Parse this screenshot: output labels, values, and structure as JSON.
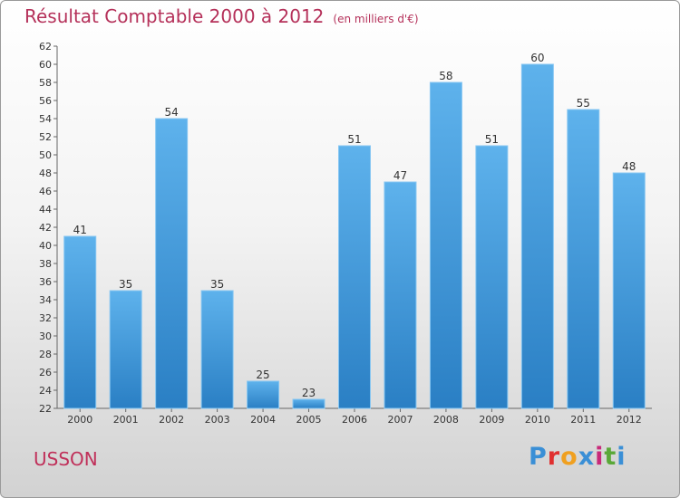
{
  "title": "Résultat Comptable 2000 à 2012",
  "subtitle": "(en milliers d'€)",
  "commune": "USSON",
  "logo": {
    "text": "Proxiti",
    "colors": [
      "#3a8fd6",
      "#e03030",
      "#f0a020",
      "#3a8fd6",
      "#c82a7a",
      "#5aa838",
      "#3a8fd6"
    ]
  },
  "colors": {
    "bar_top": "#5eb2ec",
    "bar_bottom": "#2a7fc4",
    "bar_edge": "#86c6f2",
    "title": "#b5315a"
  },
  "chart_data": {
    "type": "bar",
    "title": "Résultat Comptable 2000 à 2012",
    "subtitle": "(en milliers d'€)",
    "xlabel": "",
    "ylabel": "",
    "categories": [
      "2000",
      "2001",
      "2002",
      "2003",
      "2004",
      "2005",
      "2006",
      "2007",
      "2008",
      "2009",
      "2010",
      "2011",
      "2012"
    ],
    "values": [
      41,
      35,
      54,
      35,
      25,
      23,
      51,
      47,
      58,
      51,
      60,
      55,
      48
    ],
    "ylim": [
      22,
      62
    ],
    "ytick_step": 2,
    "grid": false,
    "legend": "none"
  }
}
